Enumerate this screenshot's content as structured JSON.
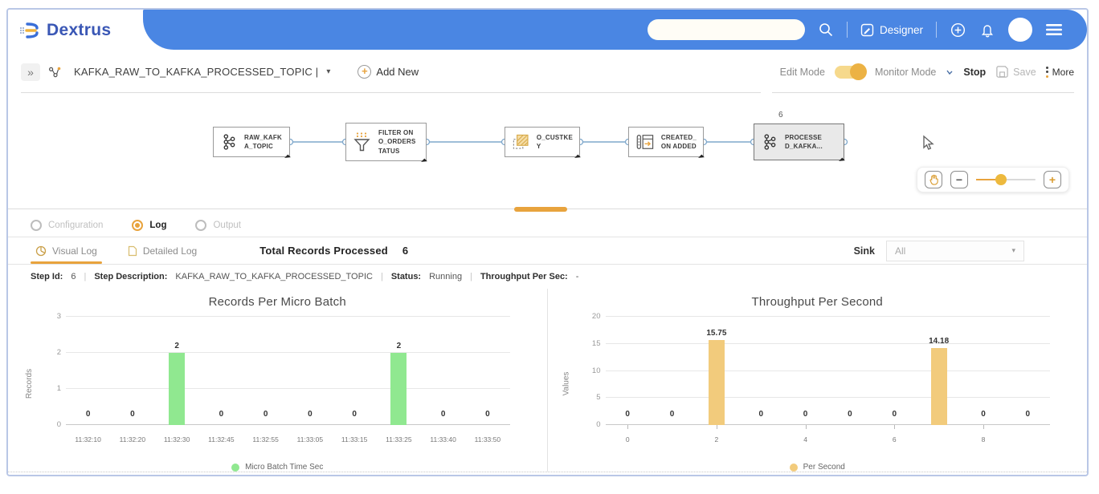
{
  "header": {
    "logo_text": "Dextrus",
    "search": {
      "placeholder": "",
      "value": ""
    },
    "designer_label": "Designer"
  },
  "toolbar": {
    "expand_label": "»",
    "pipeline_name": "KAFKA_RAW_TO_KAFKA_PROCESSED_TOPIC |",
    "dropdown_caret": "▾",
    "add_new_label": "Add New",
    "edit_mode_label": "Edit Mode",
    "monitor_mode_label": "Monitor Mode",
    "stop_label": "Stop",
    "save_label": "Save",
    "more_label": "More"
  },
  "canvas": {
    "nodes": [
      {
        "label": "RAW_KAFK\nA_TOPIC",
        "icon": "kafka-icon"
      },
      {
        "label": "FILTER ON\nO_ORDERS\nTATUS",
        "icon": "filter-icon"
      },
      {
        "label": "O_CUSTKE\nY",
        "icon": "select-columns-icon"
      },
      {
        "label": "CREATED_\nON ADDED",
        "icon": "derived-column-icon"
      },
      {
        "label": "PROCESSE\nD_KAFKA...",
        "icon": "kafka-icon",
        "badge": "6",
        "selected": true
      }
    ]
  },
  "log_panel": {
    "radio_tabs": {
      "configuration": "Configuration",
      "log": "Log",
      "output": "Output",
      "selected": "Log"
    },
    "subtabs": {
      "visual_log": "Visual Log",
      "detailed_log": "Detailed Log",
      "active": "Visual Log"
    },
    "total_records_label": "Total Records Processed",
    "total_records_value": "6",
    "sink_label": "Sink",
    "sink_value": "All",
    "sink_caret": "▾",
    "step_info": {
      "step_id_label": "Step Id:",
      "step_id_value": "6",
      "separator": "|",
      "step_description_label": "Step Description:",
      "step_description_value": "KAFKA_RAW_TO_KAFKA_PROCESSED_TOPIC",
      "status_label": "Status:",
      "status_value": "Running",
      "throughput_label": "Throughput Per Sec:",
      "throughput_value": "-"
    }
  },
  "chart_data": [
    {
      "type": "bar",
      "title": "Records Per Micro Batch",
      "xlabel": "",
      "ylabel": "Records",
      "categories": [
        "11:32:10",
        "11:32:20",
        "11:32:30",
        "11:32:45",
        "11:32:55",
        "11:33:05",
        "11:33:15",
        "11:33:25",
        "11:33:40",
        "11:33:50"
      ],
      "values": [
        0,
        0,
        2,
        0,
        0,
        0,
        0,
        2,
        0,
        0
      ],
      "ylim": [
        0,
        3
      ],
      "yticks": [
        0,
        1,
        2,
        3
      ],
      "bar_color": "#90e890",
      "legend": "Micro Batch Time Sec",
      "legend_position": "bottom",
      "grid": true,
      "xtick_every": 1
    },
    {
      "type": "bar",
      "title": "Throughput Per Second",
      "xlabel": "",
      "ylabel": "Values",
      "categories": [
        "0",
        "1",
        "2",
        "3",
        "4",
        "5",
        "6",
        "7",
        "8",
        "9"
      ],
      "values": [
        0,
        0,
        15.75,
        0,
        0,
        0,
        0,
        14.18,
        0,
        0
      ],
      "ylim": [
        0,
        20
      ],
      "yticks": [
        0,
        5,
        10,
        15,
        20
      ],
      "bar_color": "#f2cb7c",
      "legend": "Per Second",
      "legend_position": "bottom",
      "grid": true,
      "xtick_every": 2
    }
  ],
  "colors": {
    "header_blue": "#4a86e3",
    "accent_orange": "#e8a33d",
    "toggle_track": "#f6d98c",
    "toggle_knob": "#ecb244",
    "bar_green": "#90e890",
    "bar_orange": "#f2cb7c",
    "connection_blue": "#7fa8cc"
  }
}
